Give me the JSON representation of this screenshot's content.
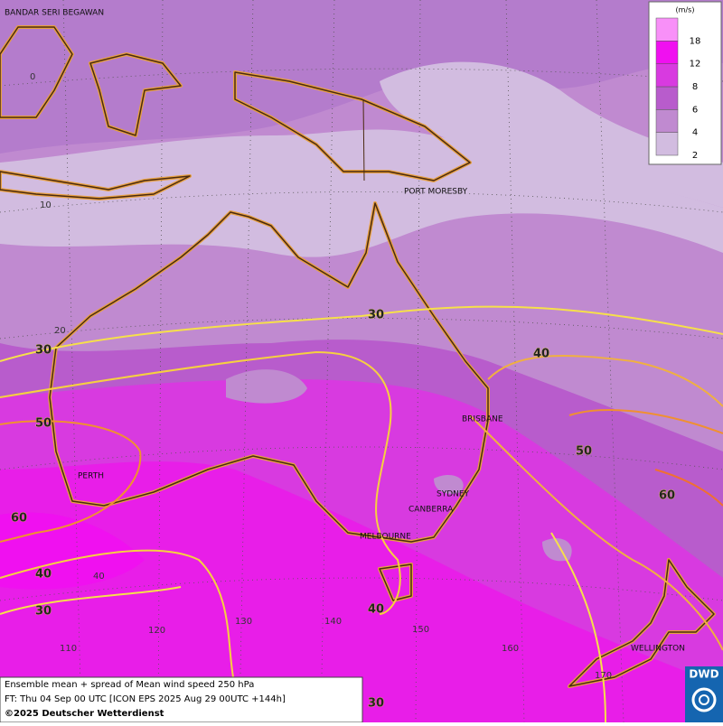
{
  "cities": [
    "BANDAR SERI BEGAWAN",
    "PORT MORESBY",
    "BRISBANE",
    "SYDNEY",
    "CANBERRA",
    "MELBOURNE",
    "PERTH",
    "WELLINGTON"
  ],
  "grid_labels": [
    "0",
    "10",
    "20",
    "40",
    "110",
    "120",
    "130",
    "140",
    "150",
    "160",
    "170"
  ],
  "contour_labels": [
    "30",
    "30",
    "40",
    "50",
    "50",
    "60",
    "60",
    "40",
    "30",
    "40",
    "30"
  ],
  "legend": {
    "unit": "(m/s)",
    "ticks": [
      "2",
      "4",
      "6",
      "8",
      "12",
      "18"
    ],
    "colors": [
      "#d2bce0",
      "#c08ad0",
      "#b85ccc",
      "#d83ae0",
      "#f010f0",
      "#f890f8"
    ]
  },
  "info": [
    "Ensemble mean + spread of Mean wind speed 250 hPa",
    "FT: Thu 04 Sep 00 UTC [ICON EPS 2025 Aug 29 00UTC +144h]",
    "©2025 Deutscher Wetterdienst"
  ],
  "logo": "DWD"
}
